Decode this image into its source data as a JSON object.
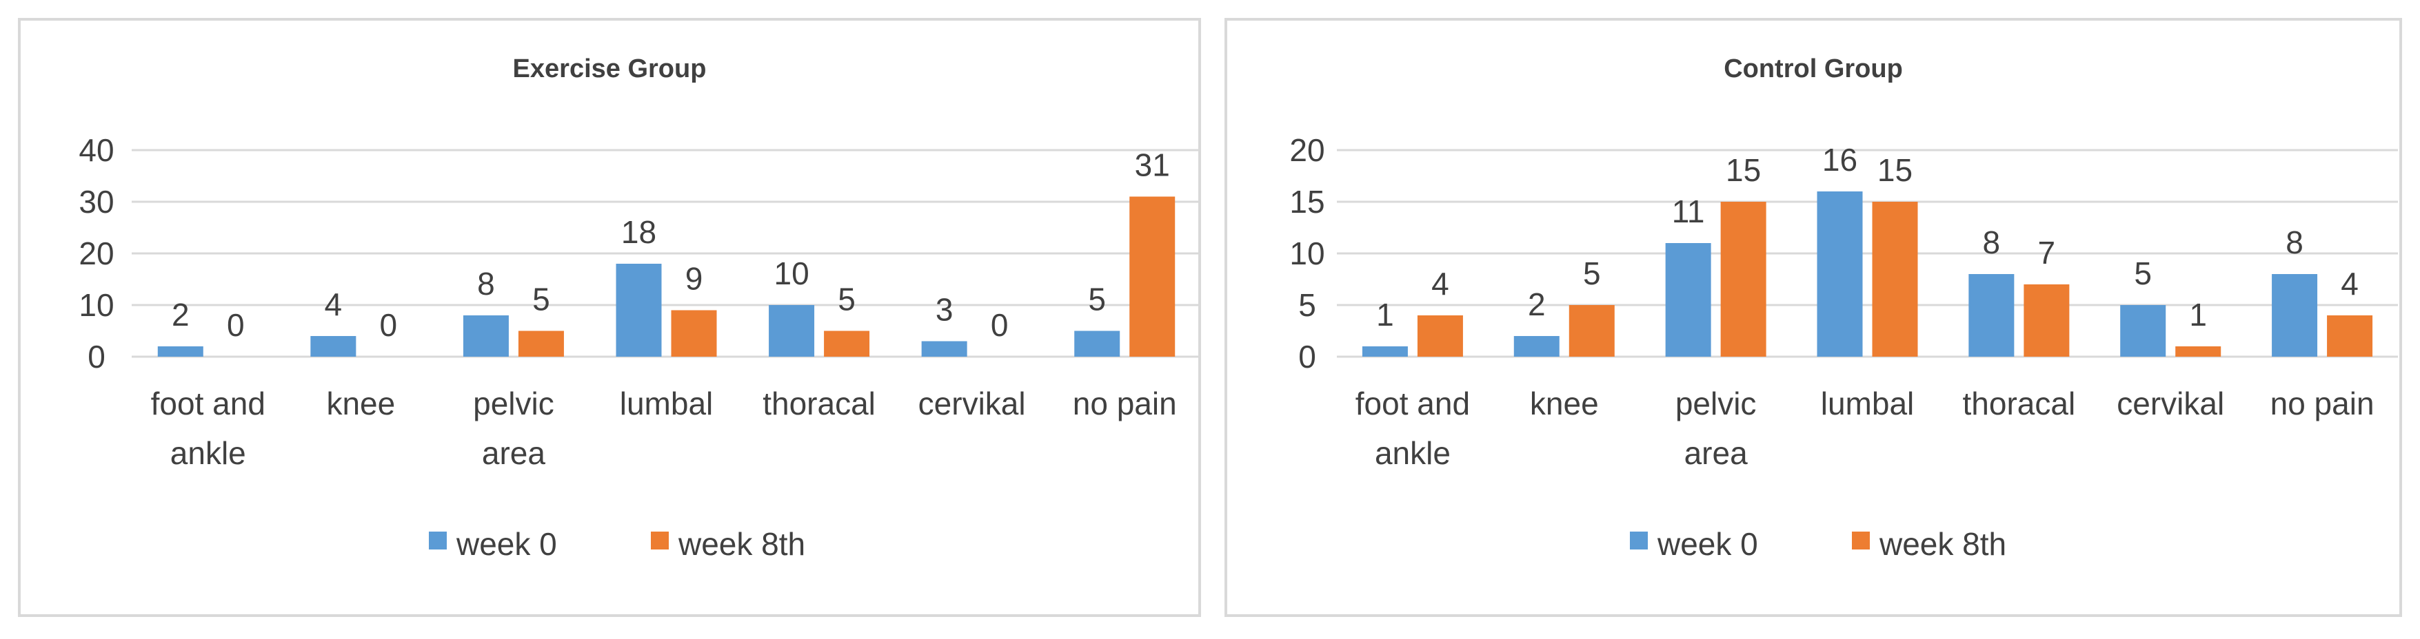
{
  "chart_data": [
    {
      "type": "bar",
      "title": "Exercise Group",
      "categories": [
        [
          "foot and",
          "ankle"
        ],
        [
          "knee"
        ],
        [
          "pelvic",
          "area"
        ],
        [
          "lumbal"
        ],
        [
          "thoracal"
        ],
        [
          "cervikal"
        ],
        [
          "no pain"
        ]
      ],
      "series": [
        {
          "name": "week 0",
          "color": "#5b9bd5",
          "values": [
            2,
            4,
            8,
            18,
            10,
            3,
            5
          ]
        },
        {
          "name": "week 8th",
          "color": "#ed7d31",
          "values": [
            0,
            0,
            5,
            9,
            5,
            0,
            31
          ]
        }
      ],
      "ylim": [
        0,
        40
      ],
      "yticks": [
        0,
        10,
        20,
        30,
        40
      ],
      "grid": true,
      "legend": "bottom"
    },
    {
      "type": "bar",
      "title": "Control Group",
      "categories": [
        [
          "foot and",
          "ankle"
        ],
        [
          "knee"
        ],
        [
          "pelvic",
          "area"
        ],
        [
          "lumbal"
        ],
        [
          "thoracal"
        ],
        [
          "cervikal"
        ],
        [
          "no pain"
        ]
      ],
      "series": [
        {
          "name": "week 0",
          "color": "#5b9bd5",
          "values": [
            1,
            2,
            11,
            16,
            8,
            5,
            8
          ]
        },
        {
          "name": "week 8th",
          "color": "#ed7d31",
          "values": [
            4,
            5,
            15,
            15,
            7,
            1,
            4
          ]
        }
      ],
      "ylim": [
        0,
        20
      ],
      "yticks": [
        0,
        5,
        10,
        15,
        20
      ],
      "grid": true,
      "legend": "bottom"
    }
  ]
}
